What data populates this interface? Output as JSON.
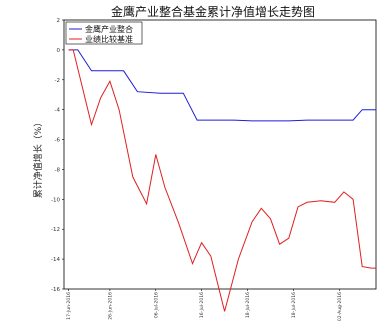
{
  "chart_data": {
    "type": "line",
    "title": "金鹰产业整合基金累计净值增长走势图",
    "xlabel": "",
    "ylabel": "累计净值增长（%）",
    "ylim": [
      -16,
      2
    ],
    "yticks": [
      "2",
      "0",
      "-2",
      "-4",
      "-6",
      "-8",
      "-10",
      "-12",
      "-14",
      "-16"
    ],
    "xticks": [
      {
        "label": "17-Jun-2016",
        "x": 0
      },
      {
        "label": "26-Jun-2016",
        "x": 9
      },
      {
        "label": "06-Jul-2016",
        "x": 19
      },
      {
        "label": "16-Jul-2016",
        "x": 29
      },
      {
        "label": "18-Jul-2016",
        "x": 39
      },
      {
        "label": "18-Jul-2016",
        "x": 49
      },
      {
        "label": "02-Aug-2016",
        "x": 59
      }
    ],
    "xlim": [
      -1,
      67
    ],
    "legend": "top-left",
    "grid": false,
    "series": [
      {
        "name": "金鹰产业整合",
        "color": "#1f1fd6",
        "x": [
          0,
          2,
          5,
          7,
          12,
          15,
          20,
          25,
          28,
          32,
          36,
          40,
          44,
          48,
          52,
          56,
          60,
          62,
          64,
          67
        ],
        "values": [
          0,
          0,
          -1.4,
          -1.4,
          -1.4,
          -2.8,
          -2.9,
          -2.9,
          -4.7,
          -4.7,
          -4.7,
          -4.75,
          -4.75,
          -4.75,
          -4.7,
          -4.7,
          -4.7,
          -4.7,
          -4.0,
          -4.0
        ]
      },
      {
        "name": "业绩比较基准",
        "color": "#e02020",
        "x": [
          0,
          1,
          5,
          7,
          9,
          11,
          14,
          17,
          19,
          21,
          24,
          27,
          29,
          31,
          34,
          37,
          40,
          42,
          44,
          46,
          48,
          50,
          52,
          55,
          58,
          60,
          62,
          64,
          66,
          67
        ],
        "values": [
          0,
          0,
          -5.0,
          -3.2,
          -2.1,
          -4.0,
          -8.5,
          -10.3,
          -7.0,
          -9.2,
          -11.6,
          -14.3,
          -12.9,
          -13.8,
          -17.5,
          -14.0,
          -11.5,
          -10.6,
          -11.3,
          -13.0,
          -12.6,
          -10.5,
          -10.2,
          -10.1,
          -10.2,
          -9.5,
          -10.0,
          -14.5,
          -14.6,
          -14.6
        ]
      }
    ]
  }
}
